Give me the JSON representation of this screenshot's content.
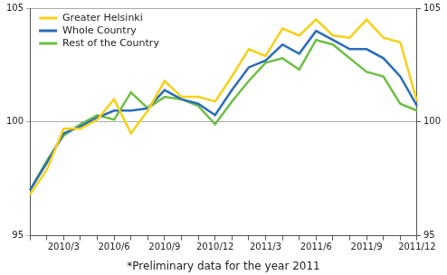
{
  "chart_data": {
    "type": "line",
    "caption": "*Preliminary data for the year 2011",
    "categories": [
      null,
      null,
      "2010/3",
      null,
      null,
      "2010/6",
      null,
      null,
      "2010/9",
      null,
      null,
      "2010/12",
      null,
      null,
      "2011/3",
      null,
      null,
      "2011/6",
      null,
      null,
      "2011/9",
      null,
      null,
      "2011/12"
    ],
    "series": [
      {
        "name": "Greater Helsinki",
        "color": "#f7d117",
        "values": [
          96.8,
          97.9,
          99.7,
          99.7,
          100.1,
          101.0,
          99.5,
          100.5,
          101.8,
          101.1,
          101.1,
          100.9,
          102.0,
          103.2,
          102.9,
          104.1,
          103.8,
          104.5,
          103.8,
          103.7,
          104.5,
          103.7,
          103.5,
          100.9
        ]
      },
      {
        "name": "Whole Country",
        "color": "#2b6cb8",
        "values": [
          97.0,
          98.2,
          99.5,
          99.8,
          100.2,
          100.5,
          100.5,
          100.6,
          101.4,
          101.0,
          100.8,
          100.3,
          101.4,
          102.4,
          102.7,
          103.4,
          103.0,
          104.0,
          103.6,
          103.2,
          103.2,
          102.8,
          102.0,
          100.7
        ]
      },
      {
        "name": "Rest of the Country",
        "color": "#6cbf45",
        "values": [
          97.0,
          98.3,
          99.4,
          99.9,
          100.3,
          100.1,
          101.3,
          100.6,
          101.1,
          101.0,
          100.7,
          99.9,
          100.9,
          101.8,
          102.6,
          102.8,
          102.3,
          103.6,
          103.4,
          102.8,
          102.2,
          102.0,
          100.8,
          100.5
        ]
      }
    ],
    "ylim": [
      95,
      105
    ],
    "yticks": [
      95,
      100,
      105
    ],
    "y2lim": [
      95,
      105
    ],
    "y2ticks": [
      95,
      100,
      105
    ],
    "grid": true,
    "legend": "upper left"
  }
}
